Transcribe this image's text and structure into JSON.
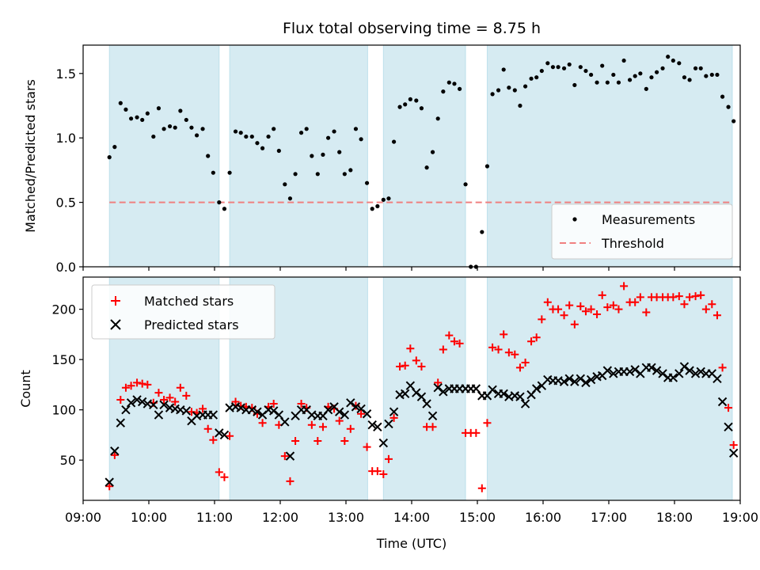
{
  "chart_data": {
    "title": "Flux total observing time = 8.75 h",
    "xlabel": "Time (UTC)",
    "xlim": [
      9.0,
      19.0
    ],
    "x_ticks": [
      9,
      10,
      11,
      12,
      13,
      14,
      15,
      16,
      17,
      18,
      19
    ],
    "x_tick_labels": [
      "09:00",
      "10:00",
      "11:00",
      "12:00",
      "13:00",
      "14:00",
      "15:00",
      "16:00",
      "17:00",
      "18:00",
      "19:00"
    ],
    "observing_windows": [
      [
        9.4,
        11.07
      ],
      [
        11.23,
        13.33
      ],
      [
        13.57,
        14.82
      ],
      [
        15.15,
        18.88
      ]
    ],
    "top": {
      "type": "scatter",
      "ylabel": "Matched/Predicted stars",
      "ylim": [
        0,
        1.72
      ],
      "y_ticks": [
        0.0,
        0.5,
        1.0,
        1.5
      ],
      "y_tick_labels": [
        "0.0",
        "0.5",
        "1.0",
        "1.5"
      ],
      "threshold": 0.5,
      "legend": [
        "Measurements",
        "Threshold"
      ],
      "series": {
        "name": "Measurements",
        "x": [
          9.4,
          9.48,
          9.57,
          9.65,
          9.73,
          9.82,
          9.9,
          9.98,
          10.07,
          10.15,
          10.23,
          10.32,
          10.4,
          10.48,
          10.57,
          10.65,
          10.73,
          10.82,
          10.9,
          10.98,
          11.07,
          11.15,
          11.23,
          11.32,
          11.4,
          11.48,
          11.57,
          11.65,
          11.73,
          11.82,
          11.9,
          11.98,
          12.07,
          12.15,
          12.23,
          12.32,
          12.4,
          12.48,
          12.57,
          12.65,
          12.73,
          12.82,
          12.9,
          12.98,
          13.07,
          13.15,
          13.23,
          13.32,
          13.4,
          13.48,
          13.57,
          13.65,
          13.73,
          13.82,
          13.9,
          13.98,
          14.07,
          14.15,
          14.23,
          14.32,
          14.4,
          14.48,
          14.57,
          14.65,
          14.73,
          14.82,
          14.9,
          14.98,
          15.07,
          15.15,
          15.23,
          15.32,
          15.4,
          15.48,
          15.57,
          15.65,
          15.73,
          15.82,
          15.9,
          15.98,
          16.07,
          16.15,
          16.23,
          16.32,
          16.4,
          16.48,
          16.57,
          16.65,
          16.73,
          16.82,
          16.9,
          16.98,
          17.07,
          17.15,
          17.23,
          17.32,
          17.4,
          17.48,
          17.57,
          17.65,
          17.73,
          17.82,
          17.9,
          17.98,
          18.07,
          18.15,
          18.23,
          18.32,
          18.4,
          18.48,
          18.57,
          18.65,
          18.73,
          18.82,
          18.9
        ],
        "y": [
          0.85,
          0.93,
          1.27,
          1.22,
          1.15,
          1.16,
          1.14,
          1.19,
          1.01,
          1.23,
          1.07,
          1.09,
          1.08,
          1.21,
          1.14,
          1.08,
          1.02,
          1.07,
          0.86,
          0.73,
          0.5,
          0.45,
          0.73,
          1.05,
          1.04,
          1.01,
          1.01,
          0.96,
          0.92,
          1.01,
          1.07,
          0.9,
          0.64,
          0.53,
          0.72,
          1.04,
          1.07,
          0.86,
          0.72,
          0.87,
          1.0,
          1.05,
          0.89,
          0.72,
          0.75,
          1.07,
          0.99,
          0.65,
          0.45,
          0.47,
          0.52,
          0.53,
          0.97,
          1.24,
          1.26,
          1.3,
          1.29,
          1.23,
          0.77,
          0.89,
          1.15,
          1.36,
          1.43,
          1.42,
          1.38,
          0.64,
          0.0,
          0.0,
          0.27,
          0.78,
          1.34,
          1.37,
          1.53,
          1.39,
          1.37,
          1.25,
          1.4,
          1.46,
          1.47,
          1.52,
          1.58,
          1.55,
          1.55,
          1.54,
          1.57,
          1.41,
          1.55,
          1.52,
          1.49,
          1.43,
          1.56,
          1.43,
          1.49,
          1.43,
          1.6,
          1.45,
          1.48,
          1.5,
          1.38,
          1.47,
          1.51,
          1.54,
          1.63,
          1.6,
          1.58,
          1.47,
          1.45,
          1.54,
          1.54,
          1.48,
          1.49,
          1.49,
          1.32,
          1.24,
          1.13
        ]
      }
    },
    "bottom": {
      "type": "scatter",
      "ylabel": "Count",
      "ylim": [
        10,
        232
      ],
      "y_ticks": [
        50,
        100,
        150,
        200
      ],
      "y_tick_labels": [
        "50",
        "100",
        "150",
        "200"
      ],
      "legend": [
        "Matched stars",
        "Predicted stars"
      ],
      "series": [
        {
          "name": "Matched stars",
          "marker": "plus",
          "color": "#ff0000",
          "x": [
            9.4,
            9.48,
            9.57,
            9.65,
            9.73,
            9.82,
            9.9,
            9.98,
            10.07,
            10.15,
            10.23,
            10.32,
            10.4,
            10.48,
            10.57,
            10.65,
            10.73,
            10.82,
            10.9,
            10.98,
            11.07,
            11.15,
            11.23,
            11.32,
            11.4,
            11.48,
            11.57,
            11.65,
            11.73,
            11.82,
            11.9,
            11.98,
            12.07,
            12.15,
            12.23,
            12.32,
            12.4,
            12.48,
            12.57,
            12.65,
            12.73,
            12.82,
            12.9,
            12.98,
            13.07,
            13.15,
            13.23,
            13.32,
            13.4,
            13.48,
            13.57,
            13.65,
            13.73,
            13.82,
            13.9,
            13.98,
            14.07,
            14.15,
            14.23,
            14.32,
            14.4,
            14.48,
            14.57,
            14.65,
            14.73,
            14.82,
            14.9,
            14.98,
            15.07,
            15.15,
            15.23,
            15.32,
            15.4,
            15.48,
            15.57,
            15.65,
            15.73,
            15.82,
            15.9,
            15.98,
            16.07,
            16.15,
            16.23,
            16.32,
            16.4,
            16.48,
            16.57,
            16.65,
            16.73,
            16.82,
            16.9,
            16.98,
            17.07,
            17.15,
            17.23,
            17.32,
            17.4,
            17.48,
            17.57,
            17.65,
            17.73,
            17.82,
            17.9,
            17.98,
            18.07,
            18.15,
            18.23,
            18.32,
            18.4,
            18.48,
            18.57,
            18.65,
            18.73,
            18.82,
            18.9
          ],
          "y": [
            24,
            55,
            110,
            122,
            124,
            127,
            126,
            125,
            107,
            117,
            110,
            112,
            108,
            122,
            114,
            98,
            97,
            101,
            81,
            70,
            38,
            33,
            74,
            108,
            104,
            103,
            102,
            96,
            87,
            103,
            106,
            85,
            54,
            29,
            69,
            106,
            102,
            85,
            69,
            83,
            103,
            101,
            89,
            69,
            81,
            104,
            96,
            63,
            39,
            39,
            36,
            51,
            92,
            143,
            144,
            161,
            149,
            143,
            83,
            83,
            127,
            160,
            174,
            168,
            166,
            77,
            77,
            77,
            22,
            87,
            162,
            160,
            175,
            157,
            155,
            142,
            147,
            168,
            172,
            190,
            207,
            200,
            200,
            194,
            204,
            185,
            203,
            198,
            200,
            195,
            214,
            202,
            204,
            200,
            223,
            207,
            207,
            212,
            197,
            212,
            212,
            212,
            212,
            212,
            213,
            205,
            212,
            213,
            214,
            200,
            205,
            194,
            142,
            102,
            65
          ]
        },
        {
          "name": "Predicted stars",
          "marker": "x",
          "color": "#000000",
          "x": [
            9.4,
            9.48,
            9.57,
            9.65,
            9.73,
            9.82,
            9.9,
            9.98,
            10.07,
            10.15,
            10.23,
            10.32,
            10.4,
            10.48,
            10.57,
            10.65,
            10.73,
            10.82,
            10.9,
            10.98,
            11.07,
            11.15,
            11.23,
            11.32,
            11.4,
            11.48,
            11.57,
            11.65,
            11.73,
            11.82,
            11.9,
            11.98,
            12.07,
            12.15,
            12.23,
            12.32,
            12.4,
            12.48,
            12.57,
            12.65,
            12.73,
            12.82,
            12.9,
            12.98,
            13.07,
            13.15,
            13.23,
            13.32,
            13.4,
            13.48,
            13.57,
            13.65,
            13.73,
            13.82,
            13.9,
            13.98,
            14.07,
            14.15,
            14.23,
            14.32,
            14.4,
            14.48,
            14.57,
            14.65,
            14.73,
            14.82,
            14.9,
            14.98,
            15.07,
            15.15,
            15.23,
            15.32,
            15.4,
            15.48,
            15.57,
            15.65,
            15.73,
            15.82,
            15.9,
            15.98,
            16.07,
            16.15,
            16.23,
            16.32,
            16.4,
            16.48,
            16.57,
            16.65,
            16.73,
            16.82,
            16.9,
            16.98,
            17.07,
            17.15,
            17.23,
            17.32,
            17.4,
            17.48,
            17.57,
            17.65,
            17.73,
            17.82,
            17.9,
            17.98,
            18.07,
            18.15,
            18.23,
            18.32,
            18.4,
            18.48,
            18.57,
            18.65,
            18.73,
            18.82,
            18.9
          ],
          "y": [
            28,
            59,
            87,
            100,
            107,
            110,
            108,
            106,
            105,
            95,
            105,
            102,
            101,
            100,
            99,
            89,
            94,
            95,
            95,
            95,
            77,
            75,
            102,
            103,
            102,
            100,
            100,
            98,
            95,
            100,
            99,
            95,
            88,
            54,
            94,
            100,
            100,
            95,
            94,
            94,
            100,
            103,
            98,
            95,
            107,
            103,
            101,
            96,
            85,
            83,
            67,
            86,
            98,
            115,
            116,
            124,
            117,
            113,
            106,
            94,
            122,
            118,
            121,
            121,
            121,
            121,
            121,
            121,
            114,
            114,
            120,
            116,
            116,
            113,
            114,
            113,
            106,
            115,
            121,
            124,
            130,
            129,
            129,
            128,
            131,
            128,
            131,
            127,
            130,
            133,
            134,
            139,
            136,
            138,
            138,
            138,
            140,
            136,
            142,
            142,
            139,
            136,
            132,
            132,
            136,
            143,
            139,
            136,
            138,
            136,
            136,
            131,
            108,
            83,
            57
          ]
        }
      ]
    }
  }
}
